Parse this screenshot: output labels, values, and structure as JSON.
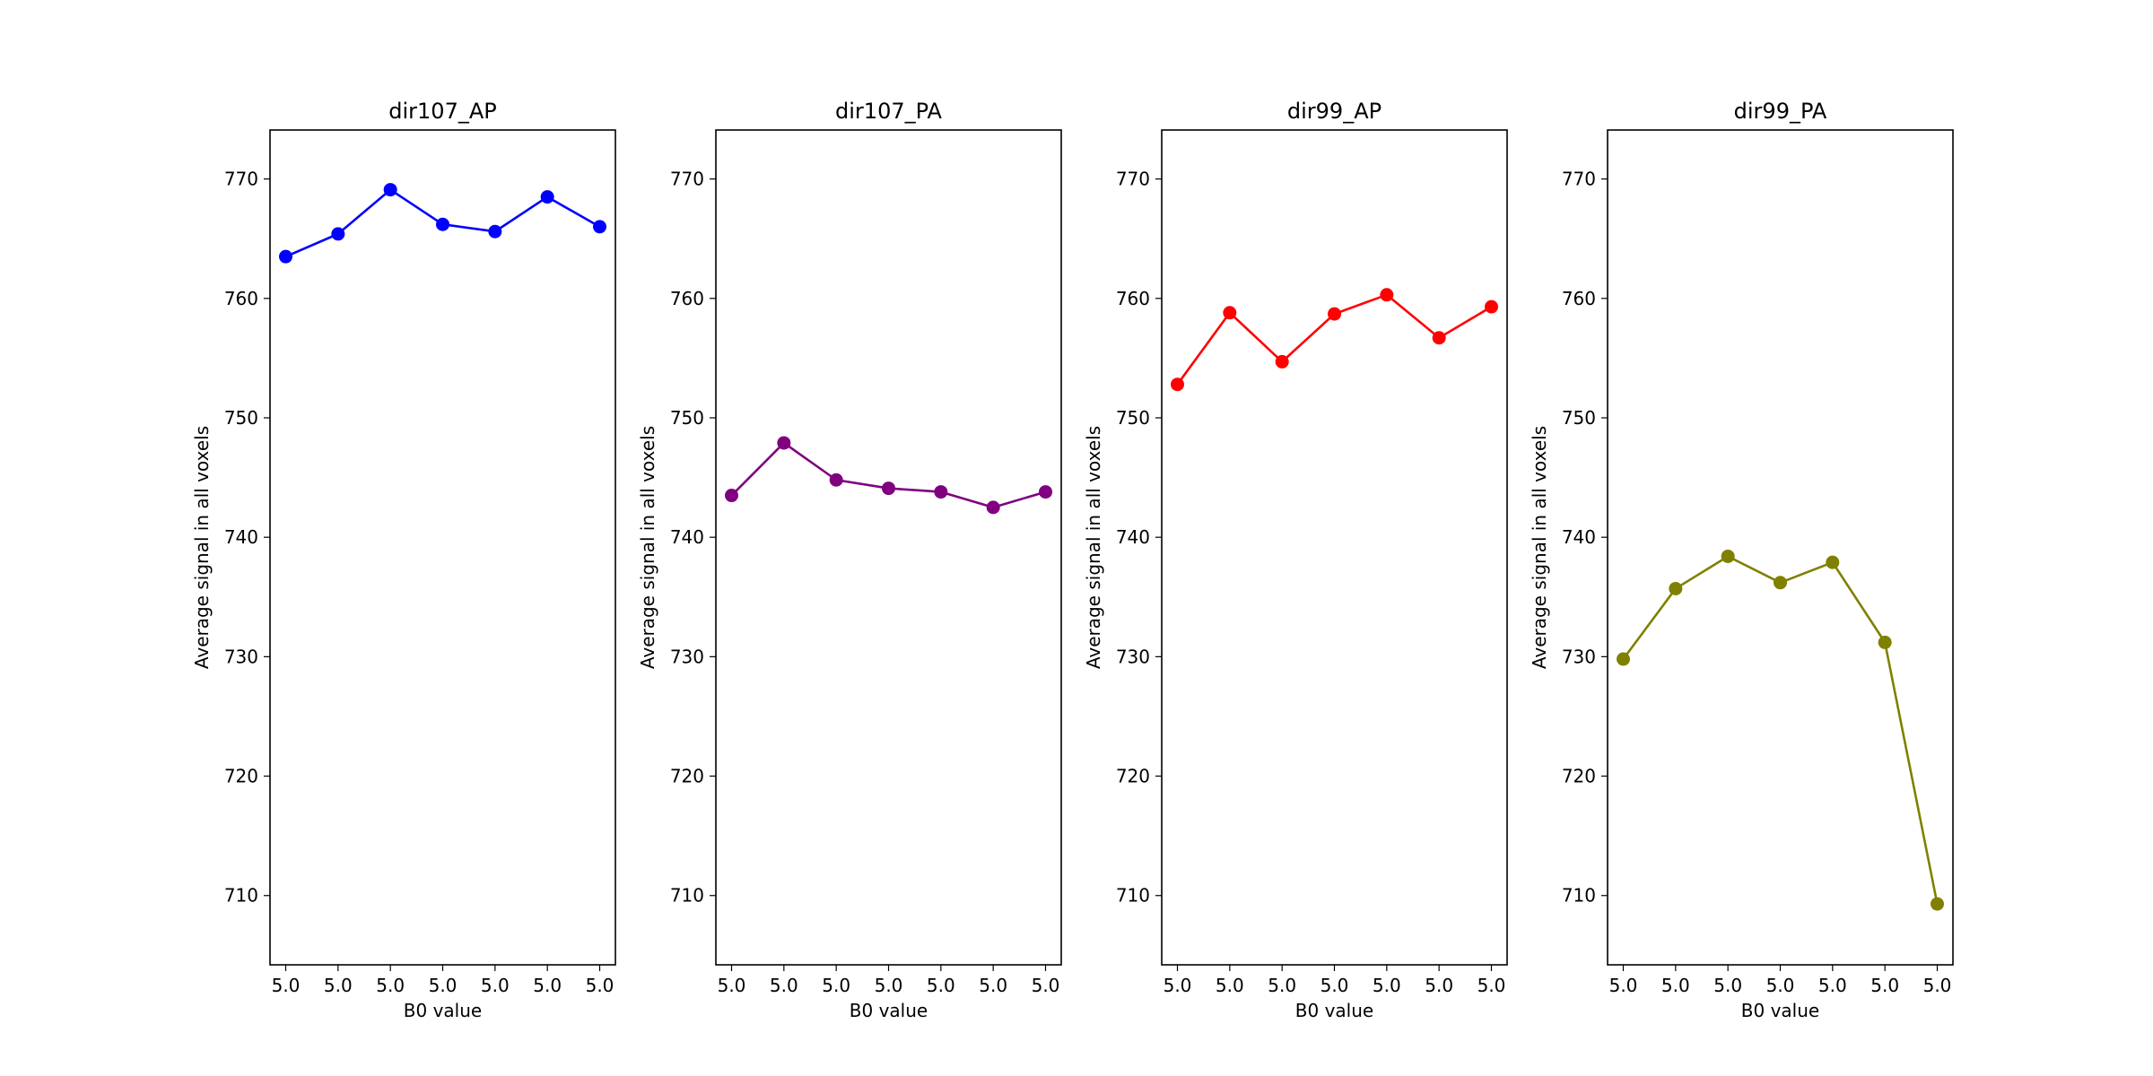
{
  "chart_data": [
    {
      "type": "line",
      "title": "dir107_AP",
      "xlabel": "B0 value",
      "ylabel": "Average signal in all voxels",
      "categories": [
        "5.0",
        "5.0",
        "5.0",
        "5.0",
        "5.0",
        "5.0",
        "5.0"
      ],
      "yticks": [
        "710",
        "720",
        "730",
        "740",
        "750",
        "760",
        "770"
      ],
      "ylim": [
        704.2,
        774.1
      ],
      "color": "#0000ff",
      "values": [
        763.5,
        765.4,
        769.1,
        766.2,
        765.6,
        768.5,
        766.0
      ]
    },
    {
      "type": "line",
      "title": "dir107_PA",
      "xlabel": "B0 value",
      "ylabel": "Average signal in all voxels",
      "categories": [
        "5.0",
        "5.0",
        "5.0",
        "5.0",
        "5.0",
        "5.0",
        "5.0"
      ],
      "yticks": [
        "710",
        "720",
        "730",
        "740",
        "750",
        "760",
        "770"
      ],
      "ylim": [
        704.2,
        774.1
      ],
      "color": "#800080",
      "values": [
        743.5,
        747.9,
        744.8,
        744.1,
        743.8,
        742.5,
        743.8
      ]
    },
    {
      "type": "line",
      "title": "dir99_AP",
      "xlabel": "B0 value",
      "ylabel": "Average signal in all voxels",
      "categories": [
        "5.0",
        "5.0",
        "5.0",
        "5.0",
        "5.0",
        "5.0",
        "5.0"
      ],
      "yticks": [
        "710",
        "720",
        "730",
        "740",
        "750",
        "760",
        "770"
      ],
      "ylim": [
        704.2,
        774.1
      ],
      "color": "#ff0000",
      "values": [
        752.8,
        758.8,
        754.7,
        758.7,
        760.3,
        756.7,
        759.3
      ]
    },
    {
      "type": "line",
      "title": "dir99_PA",
      "xlabel": "B0 value",
      "ylabel": "Average signal in all voxels",
      "categories": [
        "5.0",
        "5.0",
        "5.0",
        "5.0",
        "5.0",
        "5.0",
        "5.0"
      ],
      "yticks": [
        "710",
        "720",
        "730",
        "740",
        "750",
        "760",
        "770"
      ],
      "ylim": [
        704.2,
        774.1
      ],
      "color": "#808000",
      "values": [
        729.8,
        735.7,
        738.4,
        736.2,
        737.9,
        731.2,
        709.3
      ]
    }
  ]
}
